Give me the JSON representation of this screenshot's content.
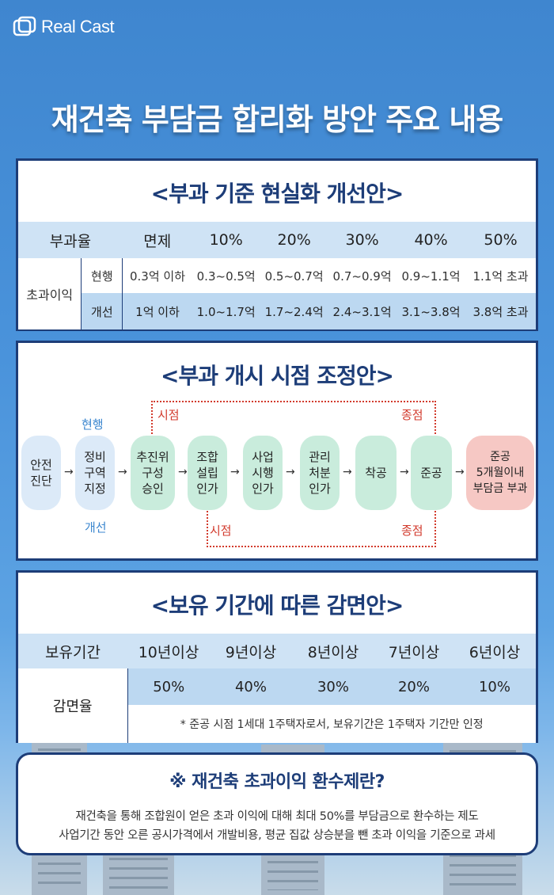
{
  "brand": "Real Cast",
  "title": "재건축 부담금 합리화 방안 주요 내용",
  "section1": {
    "title": "<부과 기준 현실화 개선안>",
    "header": [
      "부과율",
      "면제",
      "10%",
      "20%",
      "30%",
      "40%",
      "50%"
    ],
    "row_label": "초과이익",
    "rows": [
      {
        "label": "현행",
        "values": [
          "0.3억 이하",
          "0.3~0.5억",
          "0.5~0.7억",
          "0.7~0.9억",
          "0.9~1.1억",
          "1.1억 초과"
        ]
      },
      {
        "label": "개선",
        "values": [
          "1억 이하",
          "1.0~1.7억",
          "1.7~2.4억",
          "2.4~3.1억",
          "3.1~3.8억",
          "3.8억 초과"
        ]
      }
    ]
  },
  "section2": {
    "title": "<부과 개시 시점 조정안>",
    "label_current": "현행",
    "label_improved": "개선",
    "start_label": "시점",
    "end_label": "종점",
    "steps": [
      "안전\n진단",
      "정비\n구역\n지정",
      "추진위\n구성\n승인",
      "조합\n설립\n인가",
      "사업\n시행\n인가",
      "관리\n처분\n인가",
      "착공",
      "준공",
      "준공\n5개월이내\n부담금 부과"
    ],
    "arrow": "→"
  },
  "section3": {
    "title": "<보유 기간에 따른 감면안>",
    "header_label": "보유기간",
    "periods": [
      "10년이상",
      "9년이상",
      "8년이상",
      "7년이상",
      "6년이상"
    ],
    "row_label": "감면율",
    "rates": [
      "50%",
      "40%",
      "30%",
      "20%",
      "10%"
    ],
    "note": "* 준공 시점 1세대 1주택자로서, 보유기간은 1주택자 기간만 인정"
  },
  "info": {
    "title": "※ 재건축 초과이익 환수제란?",
    "line1": "재건축을 통해 조합원이 얻은 초과 이익에 대해 최대 50%를 부담금으로 환수하는 제도",
    "line2": "사업기간 동안 오른 공시가격에서 개발비용, 평균 집값 상승분을 뺀 초과 이익을 기준으로 과세"
  },
  "colors": {
    "navy": "#1d3d78",
    "red": "#d23a2c",
    "blue": "#3a86cf"
  }
}
